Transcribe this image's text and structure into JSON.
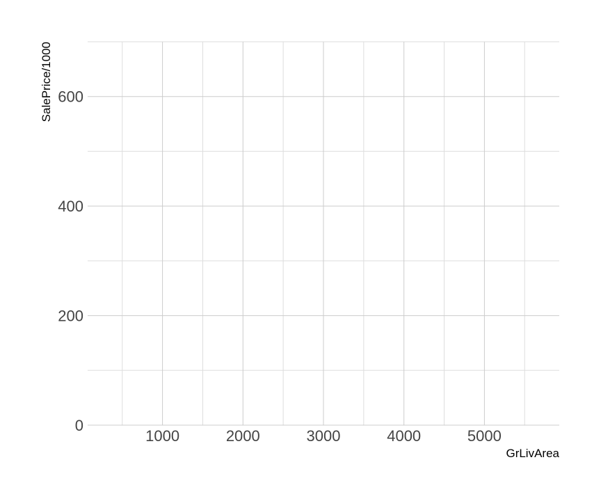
{
  "chart_data": {
    "type": "scatter",
    "title": "",
    "xlabel": "GrLivArea",
    "ylabel": "SalePrice/1000",
    "xlim": [
      70,
      5930
    ],
    "ylim": [
      0,
      700
    ],
    "x_major_ticks": [
      1000,
      2000,
      3000,
      4000,
      5000
    ],
    "x_minor_ticks": [
      500,
      1500,
      2500,
      3500,
      4500,
      5500
    ],
    "y_major_ticks": [
      0,
      200,
      400,
      600
    ],
    "y_minor_ticks": [
      100,
      300,
      500,
      700
    ],
    "x_tick_labels": [
      "1000",
      "2000",
      "3000",
      "4000",
      "5000"
    ],
    "y_tick_labels": [
      "0",
      "200",
      "400",
      "600"
    ],
    "grid": true,
    "series": [
      {
        "x": [],
        "y": []
      }
    ],
    "colors": {
      "grid_major": "#cccccc",
      "grid_minor": "#dddddd",
      "tick_text": "#444444",
      "axis_title": "#000000"
    }
  }
}
